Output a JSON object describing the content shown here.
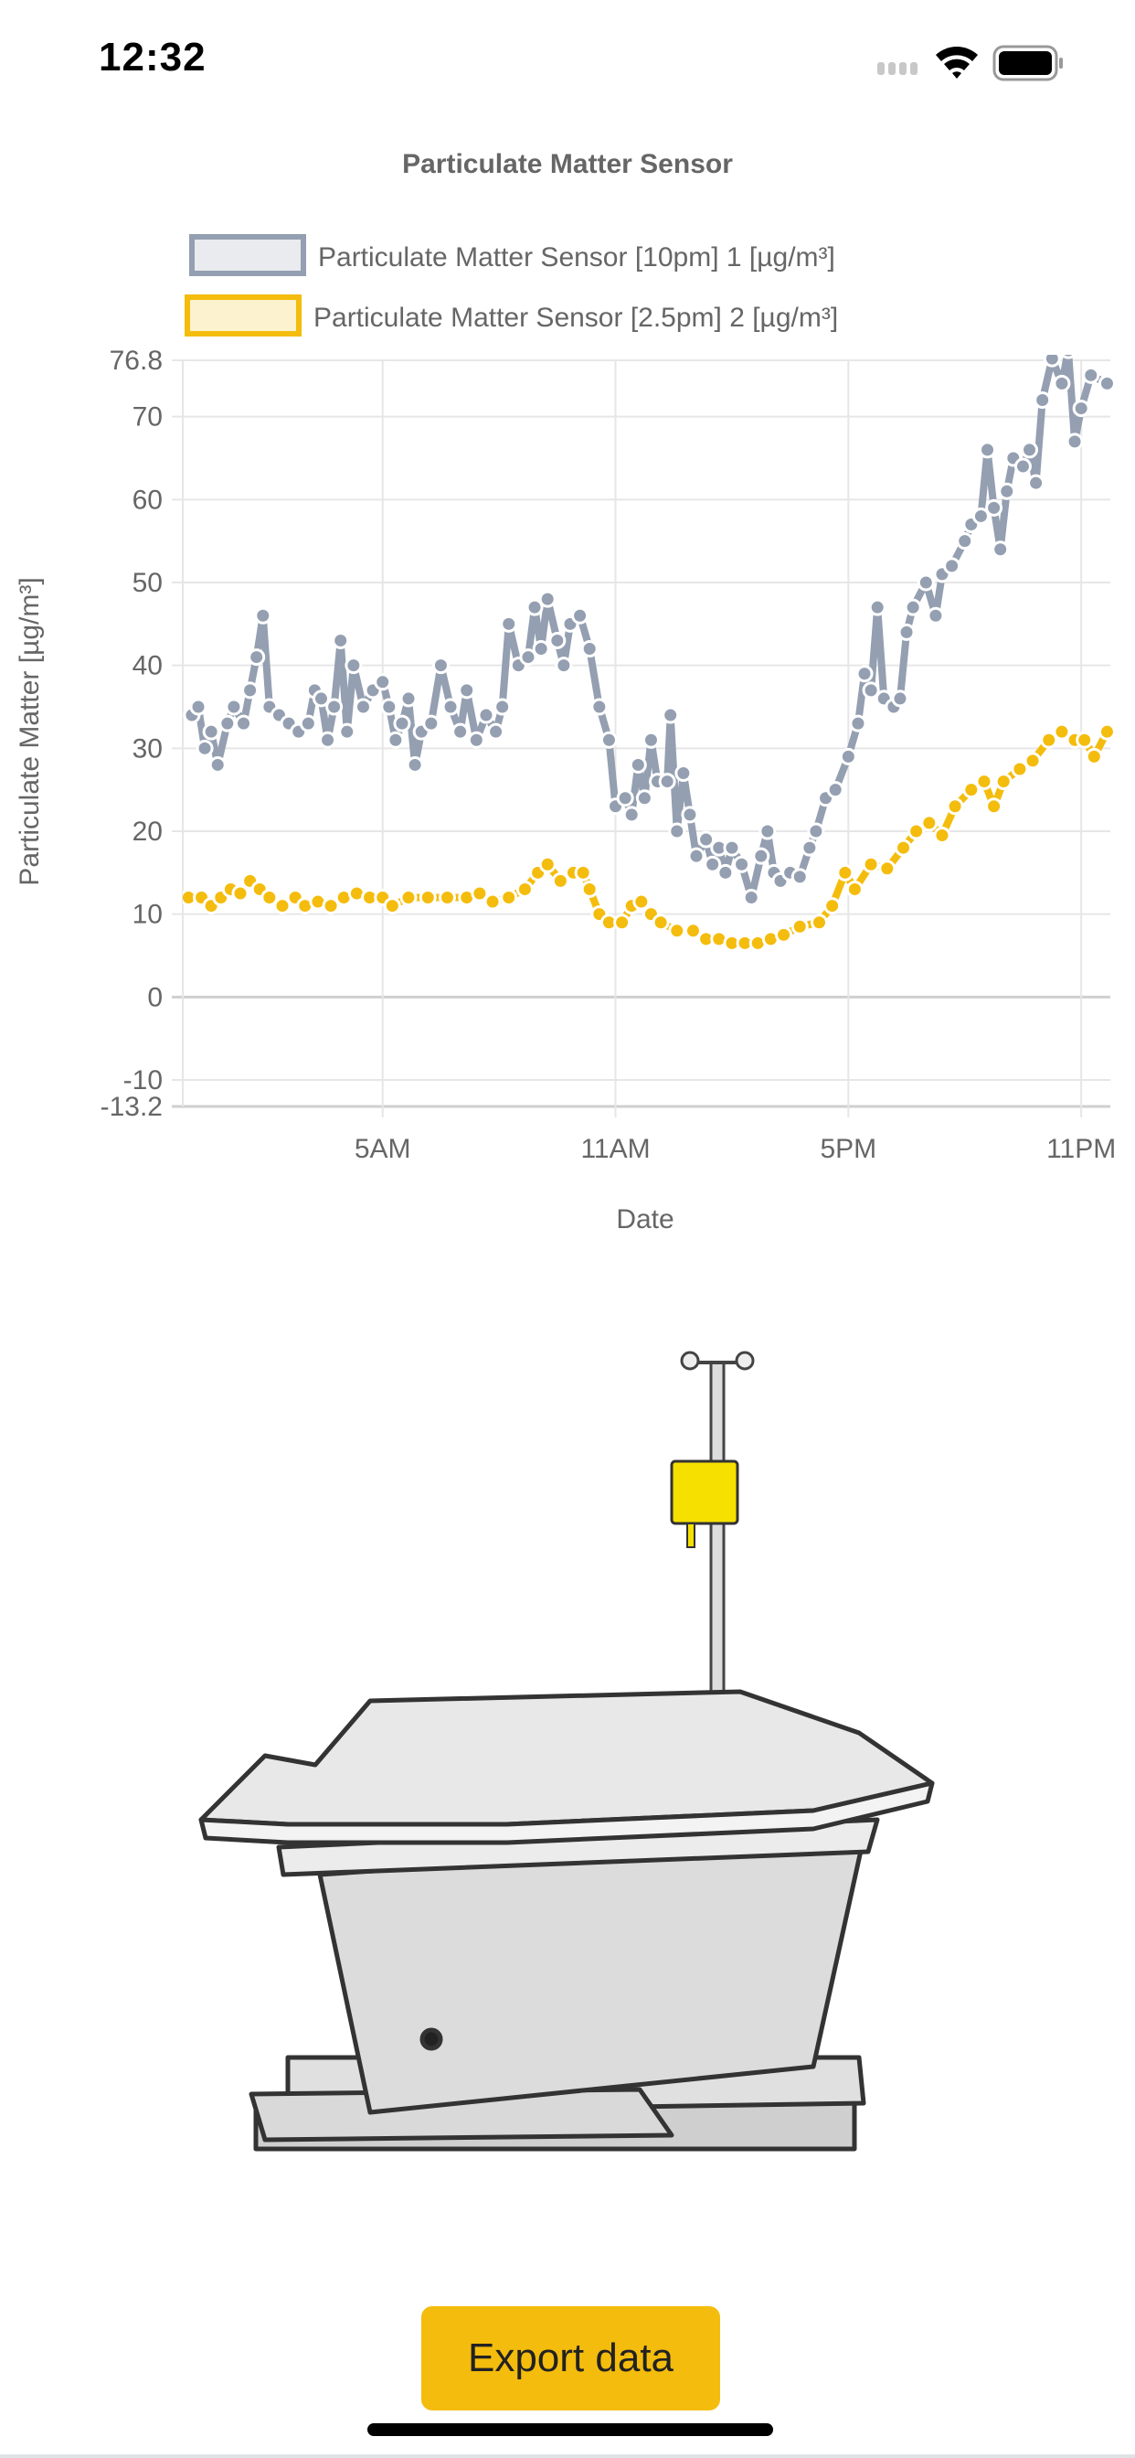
{
  "status_bar": {
    "time": "12:32"
  },
  "chart_data": {
    "type": "line",
    "title": "Particulate Matter Sensor",
    "xlabel": "Date",
    "ylabel": "Particulate Matter [µg/m³]",
    "ylim": [
      -13.2,
      76.8
    ],
    "yticks": [
      "76.8",
      "70",
      "60",
      "50",
      "40",
      "30",
      "20",
      "10",
      "0",
      "-10",
      "-13.2"
    ],
    "xticks": [
      {
        "label": "5AM",
        "t": "05:00"
      },
      {
        "label": "11AM",
        "t": "11:00"
      },
      {
        "label": "5PM",
        "t": "17:00"
      },
      {
        "label": "11PM",
        "t": "23:00"
      }
    ],
    "xlim": [
      "23:51",
      "23:45"
    ],
    "grid": true,
    "legend": "top",
    "series": [
      {
        "name": "Particulate Matter Sensor [10pm] 1 [µg/m³]",
        "color": "#949fb1",
        "fill": "#e9ebef",
        "points": [
          [
            "00:05",
            34
          ],
          [
            "00:15",
            35
          ],
          [
            "00:25",
            30
          ],
          [
            "00:35",
            32
          ],
          [
            "00:45",
            28
          ],
          [
            "01:00",
            33
          ],
          [
            "01:10",
            35
          ],
          [
            "01:25",
            33
          ],
          [
            "01:35",
            37
          ],
          [
            "01:45",
            41
          ],
          [
            "01:55",
            46
          ],
          [
            "02:05",
            35
          ],
          [
            "02:20",
            34
          ],
          [
            "02:35",
            33
          ],
          [
            "02:50",
            32
          ],
          [
            "03:05",
            33
          ],
          [
            "03:15",
            37
          ],
          [
            "03:25",
            36
          ],
          [
            "03:35",
            31
          ],
          [
            "03:45",
            35
          ],
          [
            "03:55",
            43
          ],
          [
            "04:05",
            32
          ],
          [
            "04:15",
            40
          ],
          [
            "04:30",
            35
          ],
          [
            "04:45",
            37
          ],
          [
            "05:00",
            38
          ],
          [
            "05:10",
            35
          ],
          [
            "05:20",
            31
          ],
          [
            "05:30",
            33
          ],
          [
            "05:40",
            36
          ],
          [
            "05:50",
            28
          ],
          [
            "06:00",
            32
          ],
          [
            "06:15",
            33
          ],
          [
            "06:30",
            40
          ],
          [
            "06:45",
            35
          ],
          [
            "07:00",
            32
          ],
          [
            "07:10",
            37
          ],
          [
            "07:25",
            31
          ],
          [
            "07:40",
            34
          ],
          [
            "07:55",
            32
          ],
          [
            "08:05",
            35
          ],
          [
            "08:15",
            45
          ],
          [
            "08:30",
            40
          ],
          [
            "08:45",
            41
          ],
          [
            "08:55",
            47
          ],
          [
            "09:05",
            42
          ],
          [
            "09:15",
            48
          ],
          [
            "09:30",
            43
          ],
          [
            "09:40",
            40
          ],
          [
            "09:50",
            45
          ],
          [
            "10:05",
            46
          ],
          [
            "10:20",
            42
          ],
          [
            "10:35",
            35
          ],
          [
            "10:50",
            31
          ],
          [
            "11:00",
            23
          ],
          [
            "11:15",
            24
          ],
          [
            "11:25",
            22
          ],
          [
            "11:35",
            28
          ],
          [
            "11:45",
            24
          ],
          [
            "11:55",
            31
          ],
          [
            "12:05",
            26
          ],
          [
            "12:20",
            26
          ],
          [
            "12:25",
            34
          ],
          [
            "12:35",
            20
          ],
          [
            "12:45",
            27
          ],
          [
            "12:55",
            22
          ],
          [
            "13:05",
            17
          ],
          [
            "13:20",
            19
          ],
          [
            "13:30",
            16
          ],
          [
            "13:40",
            18
          ],
          [
            "13:50",
            15
          ],
          [
            "14:00",
            18
          ],
          [
            "14:15",
            16
          ],
          [
            "14:30",
            12
          ],
          [
            "14:45",
            17
          ],
          [
            "14:55",
            20
          ],
          [
            "15:05",
            15
          ],
          [
            "15:15",
            14
          ],
          [
            "15:30",
            15
          ],
          [
            "15:45",
            14.5
          ],
          [
            "16:00",
            18
          ],
          [
            "16:10",
            20
          ],
          [
            "16:25",
            24
          ],
          [
            "16:40",
            25
          ],
          [
            "17:00",
            29
          ],
          [
            "17:15",
            33
          ],
          [
            "17:25",
            39
          ],
          [
            "17:35",
            37
          ],
          [
            "17:45",
            47
          ],
          [
            "17:55",
            36
          ],
          [
            "18:10",
            35
          ],
          [
            "18:20",
            36
          ],
          [
            "18:30",
            44
          ],
          [
            "18:40",
            47
          ],
          [
            "19:00",
            50
          ],
          [
            "19:15",
            46
          ],
          [
            "19:25",
            51
          ],
          [
            "19:40",
            52
          ],
          [
            "20:00",
            55
          ],
          [
            "20:10",
            57
          ],
          [
            "20:25",
            58
          ],
          [
            "20:35",
            66
          ],
          [
            "20:45",
            59
          ],
          [
            "20:55",
            54
          ],
          [
            "21:05",
            61
          ],
          [
            "21:15",
            65
          ],
          [
            "21:30",
            64
          ],
          [
            "21:40",
            66
          ],
          [
            "21:50",
            62
          ],
          [
            "22:00",
            72
          ],
          [
            "22:15",
            77
          ],
          [
            "22:30",
            74
          ],
          [
            "22:40",
            78
          ],
          [
            "22:50",
            67
          ],
          [
            "23:00",
            71
          ],
          [
            "23:15",
            75
          ],
          [
            "23:40",
            74
          ]
        ]
      },
      {
        "name": "Particulate Matter Sensor [2.5pm] 2 [µg/m³]",
        "color": "#f4bc0c",
        "fill": "#fdf2cf",
        "points": [
          [
            "00:00",
            12
          ],
          [
            "00:20",
            12
          ],
          [
            "00:35",
            11
          ],
          [
            "00:50",
            12
          ],
          [
            "01:05",
            13
          ],
          [
            "01:20",
            12.5
          ],
          [
            "01:35",
            14
          ],
          [
            "01:50",
            13
          ],
          [
            "02:05",
            12
          ],
          [
            "02:25",
            11
          ],
          [
            "02:45",
            12
          ],
          [
            "03:00",
            11
          ],
          [
            "03:20",
            11.5
          ],
          [
            "03:40",
            11
          ],
          [
            "04:00",
            12
          ],
          [
            "04:20",
            12.5
          ],
          [
            "04:40",
            12
          ],
          [
            "05:00",
            12
          ],
          [
            "05:15",
            11
          ],
          [
            "05:40",
            12
          ],
          [
            "06:10",
            12
          ],
          [
            "06:40",
            12
          ],
          [
            "07:10",
            12
          ],
          [
            "07:30",
            12.5
          ],
          [
            "07:50",
            11.5
          ],
          [
            "08:15",
            12
          ],
          [
            "08:40",
            13
          ],
          [
            "09:00",
            15
          ],
          [
            "09:15",
            16
          ],
          [
            "09:35",
            14
          ],
          [
            "09:55",
            15
          ],
          [
            "10:10",
            15
          ],
          [
            "10:20",
            13
          ],
          [
            "10:35",
            10
          ],
          [
            "10:50",
            9
          ],
          [
            "11:10",
            9
          ],
          [
            "11:25",
            11
          ],
          [
            "11:40",
            11.5
          ],
          [
            "11:55",
            10
          ],
          [
            "12:10",
            9
          ],
          [
            "12:35",
            8
          ],
          [
            "13:00",
            8
          ],
          [
            "13:20",
            7
          ],
          [
            "13:40",
            7
          ],
          [
            "14:00",
            6.5
          ],
          [
            "14:20",
            6.5
          ],
          [
            "14:40",
            6.5
          ],
          [
            "15:00",
            7
          ],
          [
            "15:20",
            7.5
          ],
          [
            "15:45",
            8.5
          ],
          [
            "16:15",
            9
          ],
          [
            "16:35",
            11
          ],
          [
            "16:55",
            15
          ],
          [
            "17:10",
            13
          ],
          [
            "17:35",
            16
          ],
          [
            "18:00",
            15.5
          ],
          [
            "18:25",
            18
          ],
          [
            "18:45",
            20
          ],
          [
            "19:05",
            21
          ],
          [
            "19:25",
            19.5
          ],
          [
            "19:45",
            23
          ],
          [
            "20:10",
            25
          ],
          [
            "20:30",
            26
          ],
          [
            "20:45",
            23
          ],
          [
            "21:00",
            26
          ],
          [
            "21:25",
            27.5
          ],
          [
            "21:45",
            28.5
          ],
          [
            "22:10",
            31
          ],
          [
            "22:30",
            32
          ],
          [
            "22:50",
            31
          ],
          [
            "23:05",
            31
          ],
          [
            "23:20",
            29
          ],
          [
            "23:40",
            32
          ]
        ]
      }
    ]
  },
  "actions": {
    "export_label": "Export data"
  }
}
